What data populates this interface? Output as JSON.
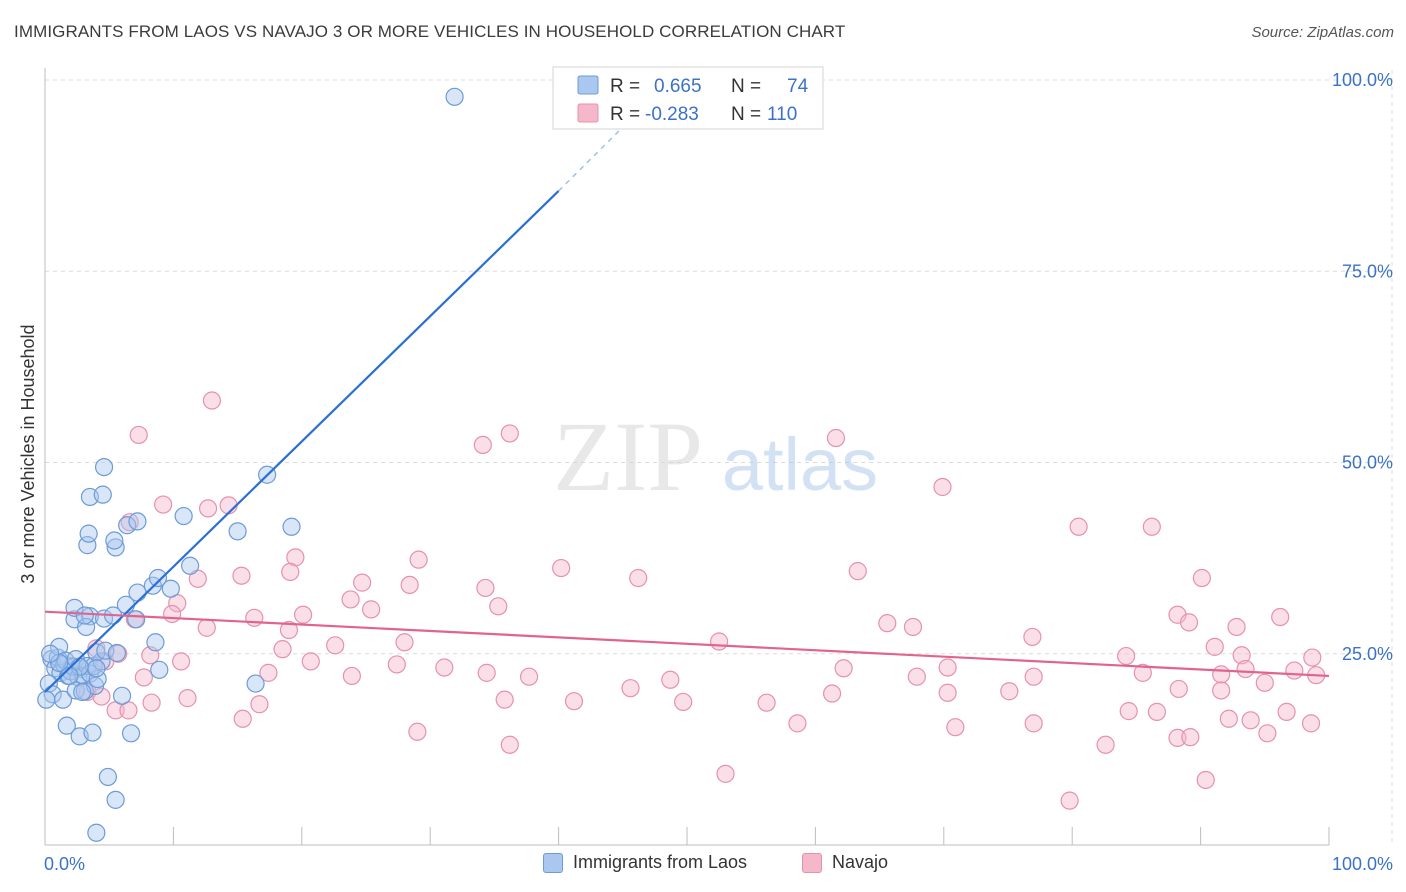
{
  "title": "IMMIGRANTS FROM LAOS VS NAVAJO 3 OR MORE VEHICLES IN HOUSEHOLD CORRELATION CHART",
  "source": "Source: ZipAtlas.com",
  "watermark": {
    "zip": "ZIP",
    "atlas": "atlas"
  },
  "colors": {
    "blue_fill": "#aac8ef",
    "blue_stroke": "#6c9bd6",
    "blue_line": "#2a6fd6",
    "pink_fill": "#f5b8cb",
    "pink_stroke": "#e691ae",
    "pink_line": "#e0648f",
    "axis_label": "#3b72c7",
    "grid": "#dcdcdc"
  },
  "legend_stats": [
    {
      "r_label": "R =",
      "r_value": "0.665",
      "n_label": "N =",
      "n_value": "74",
      "series": "Immigrants from Laos"
    },
    {
      "r_label": "R =",
      "r_value": "-0.283",
      "n_label": "N =",
      "n_value": "110",
      "series": "Navajo"
    }
  ],
  "chart_data": {
    "type": "scatter",
    "title": "IMMIGRANTS FROM LAOS VS NAVAJO 3 OR MORE VEHICLES IN HOUSEHOLD CORRELATION CHART",
    "xlabel": "",
    "ylabel": "3 or more Vehicles in Household",
    "xlim": [
      0,
      100
    ],
    "ylim": [
      0,
      100
    ],
    "x_tick_labels": [
      {
        "value": 0,
        "label": "0.0%"
      },
      {
        "value": 100,
        "label": "100.0%"
      }
    ],
    "y_tick_labels": [
      {
        "value": 25,
        "label": "25.0%"
      },
      {
        "value": 50,
        "label": "50.0%"
      },
      {
        "value": 75,
        "label": "75.0%"
      },
      {
        "value": 100,
        "label": "100.0%"
      }
    ],
    "grid": true,
    "legend": "top-center",
    "series": [
      {
        "name": "Immigrants from Laos",
        "color": "#6c9bd6",
        "trend": {
          "x0": 0,
          "y0": 20.0,
          "x1": 40,
          "y1": 85.5,
          "dash_to_x": 46,
          "dash_to_y": 95.5
        },
        "points": [
          [
            31.9,
            97.8
          ],
          [
            0.5,
            24.3
          ],
          [
            0.8,
            23.1
          ],
          [
            1.0,
            24.5
          ],
          [
            1.2,
            22.5
          ],
          [
            0.3,
            21.1
          ],
          [
            0.6,
            19.7
          ],
          [
            1.1,
            25.9
          ],
          [
            1.5,
            23.6
          ],
          [
            1.8,
            22.1
          ],
          [
            1.6,
            24.1
          ],
          [
            2.0,
            22.7
          ],
          [
            2.2,
            23.3
          ],
          [
            2.4,
            24.3
          ],
          [
            2.8,
            23.0
          ],
          [
            2.6,
            21.9
          ],
          [
            3.0,
            22.1
          ],
          [
            3.3,
            23.4
          ],
          [
            3.5,
            22.4
          ],
          [
            1.4,
            19.0
          ],
          [
            2.4,
            20.2
          ],
          [
            3.1,
            20.1
          ],
          [
            3.9,
            20.8
          ],
          [
            4.1,
            21.7
          ],
          [
            3.8,
            23.4
          ],
          [
            4.4,
            24.0
          ],
          [
            4.0,
            25.2
          ],
          [
            4.7,
            25.4
          ],
          [
            5.6,
            25.1
          ],
          [
            3.5,
            29.9
          ],
          [
            4.6,
            29.6
          ],
          [
            2.3,
            29.5
          ],
          [
            3.2,
            28.5
          ],
          [
            7.1,
            29.5
          ],
          [
            5.3,
            30.0
          ],
          [
            6.3,
            31.4
          ],
          [
            7.2,
            33.0
          ],
          [
            8.4,
            33.9
          ],
          [
            8.8,
            34.9
          ],
          [
            9.8,
            33.5
          ],
          [
            11.3,
            36.5
          ],
          [
            8.6,
            26.5
          ],
          [
            8.9,
            22.9
          ],
          [
            6.0,
            19.5
          ],
          [
            4.0,
            23.1
          ],
          [
            1.7,
            15.6
          ],
          [
            2.7,
            14.2
          ],
          [
            3.7,
            14.7
          ],
          [
            6.7,
            14.6
          ],
          [
            4.9,
            8.9
          ],
          [
            5.5,
            5.9
          ],
          [
            4.0,
            1.6
          ],
          [
            2.3,
            31.0
          ],
          [
            3.1,
            30.0
          ],
          [
            5.5,
            38.9
          ],
          [
            5.4,
            39.8
          ],
          [
            3.3,
            39.2
          ],
          [
            3.4,
            40.7
          ],
          [
            6.4,
            41.8
          ],
          [
            7.2,
            42.3
          ],
          [
            3.5,
            45.5
          ],
          [
            4.5,
            45.8
          ],
          [
            4.6,
            49.4
          ],
          [
            10.8,
            43.0
          ],
          [
            15.0,
            41.0
          ],
          [
            17.3,
            48.4
          ],
          [
            19.2,
            41.6
          ],
          [
            16.4,
            21.1
          ],
          [
            2.7,
            23.3
          ],
          [
            1.1,
            23.8
          ],
          [
            0.4,
            25.0
          ],
          [
            1.9,
            22.1
          ],
          [
            2.9,
            20.0
          ],
          [
            0.1,
            19.0
          ]
        ]
      },
      {
        "name": "Navajo",
        "color": "#e691ae",
        "trend": {
          "x0": 0,
          "y0": 30.5,
          "x1": 100,
          "y1": 22.1
        },
        "points": [
          [
            13.0,
            58.1
          ],
          [
            7.3,
            53.6
          ],
          [
            34.1,
            52.3
          ],
          [
            36.2,
            53.8
          ],
          [
            61.6,
            53.2
          ],
          [
            69.9,
            46.8
          ],
          [
            9.2,
            44.5
          ],
          [
            12.7,
            44.0
          ],
          [
            14.3,
            44.4
          ],
          [
            80.5,
            41.6
          ],
          [
            86.2,
            41.6
          ],
          [
            6.6,
            42.2
          ],
          [
            19.5,
            37.6
          ],
          [
            29.1,
            37.3
          ],
          [
            40.2,
            36.2
          ],
          [
            63.3,
            35.8
          ],
          [
            15.3,
            35.2
          ],
          [
            19.1,
            35.7
          ],
          [
            11.9,
            34.8
          ],
          [
            24.7,
            34.3
          ],
          [
            28.4,
            34.0
          ],
          [
            46.2,
            34.9
          ],
          [
            90.1,
            34.9
          ],
          [
            34.3,
            33.6
          ],
          [
            23.8,
            32.1
          ],
          [
            35.3,
            31.2
          ],
          [
            25.4,
            30.8
          ],
          [
            10.3,
            31.6
          ],
          [
            9.9,
            30.2
          ],
          [
            16.3,
            29.7
          ],
          [
            20.1,
            30.1
          ],
          [
            65.6,
            29.0
          ],
          [
            67.6,
            28.5
          ],
          [
            88.2,
            30.1
          ],
          [
            89.1,
            29.1
          ],
          [
            92.8,
            28.5
          ],
          [
            96.2,
            29.8
          ],
          [
            7.0,
            29.5
          ],
          [
            12.6,
            28.4
          ],
          [
            19.0,
            28.1
          ],
          [
            76.9,
            27.2
          ],
          [
            28.0,
            26.5
          ],
          [
            22.6,
            26.1
          ],
          [
            18.5,
            25.6
          ],
          [
            52.5,
            26.6
          ],
          [
            91.1,
            25.9
          ],
          [
            8.2,
            24.8
          ],
          [
            10.6,
            24.0
          ],
          [
            20.7,
            24.0
          ],
          [
            27.4,
            23.6
          ],
          [
            31.1,
            23.2
          ],
          [
            62.2,
            23.1
          ],
          [
            70.3,
            23.2
          ],
          [
            84.2,
            24.7
          ],
          [
            93.2,
            24.8
          ],
          [
            98.7,
            24.5
          ],
          [
            4.7,
            24.0
          ],
          [
            4.0,
            25.7
          ],
          [
            5.7,
            25.0
          ],
          [
            2.1,
            23.4
          ],
          [
            17.4,
            22.5
          ],
          [
            23.9,
            22.1
          ],
          [
            34.4,
            22.5
          ],
          [
            37.7,
            22.0
          ],
          [
            48.7,
            21.6
          ],
          [
            67.9,
            22.0
          ],
          [
            77.0,
            22.0
          ],
          [
            85.5,
            22.5
          ],
          [
            91.6,
            22.3
          ],
          [
            93.5,
            23.0
          ],
          [
            95.0,
            21.2
          ],
          [
            97.3,
            22.8
          ],
          [
            7.7,
            21.9
          ],
          [
            3.3,
            20.0
          ],
          [
            4.4,
            19.4
          ],
          [
            8.3,
            18.6
          ],
          [
            11.1,
            19.2
          ],
          [
            16.7,
            18.4
          ],
          [
            45.6,
            20.5
          ],
          [
            75.1,
            20.1
          ],
          [
            88.3,
            20.4
          ],
          [
            91.6,
            20.2
          ],
          [
            99.0,
            22.2
          ],
          [
            5.5,
            17.6
          ],
          [
            6.5,
            17.6
          ],
          [
            15.4,
            16.5
          ],
          [
            35.8,
            19.0
          ],
          [
            41.2,
            18.8
          ],
          [
            49.7,
            18.7
          ],
          [
            56.2,
            18.6
          ],
          [
            61.3,
            19.8
          ],
          [
            70.3,
            19.9
          ],
          [
            84.4,
            17.5
          ],
          [
            86.6,
            17.4
          ],
          [
            92.2,
            16.5
          ],
          [
            93.9,
            16.3
          ],
          [
            96.7,
            17.4
          ],
          [
            98.6,
            15.9
          ],
          [
            58.6,
            15.9
          ],
          [
            70.9,
            15.4
          ],
          [
            77.0,
            15.9
          ],
          [
            29.0,
            14.8
          ],
          [
            36.2,
            13.1
          ],
          [
            82.6,
            13.1
          ],
          [
            88.2,
            14.0
          ],
          [
            89.2,
            14.1
          ],
          [
            95.2,
            14.6
          ],
          [
            53.0,
            9.3
          ],
          [
            79.8,
            5.8
          ],
          [
            90.4,
            8.5
          ]
        ]
      }
    ]
  }
}
